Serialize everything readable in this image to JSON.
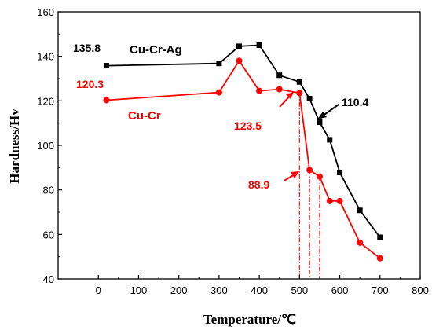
{
  "chart_data": {
    "type": "line",
    "xlabel": "Temperature/℃",
    "ylabel": "Hardness/Hv",
    "xlim": [
      -100,
      800
    ],
    "ylim": [
      40,
      160
    ],
    "xticks": [
      0,
      100,
      200,
      300,
      400,
      500,
      600,
      700,
      800
    ],
    "yticks": [
      40,
      60,
      80,
      100,
      120,
      140,
      160
    ],
    "grid": false,
    "series": [
      {
        "name": "Cu-Cr-Ag",
        "color": "#000000",
        "marker": "square",
        "points": [
          [
            20,
            135.8
          ],
          [
            300,
            136.8
          ],
          [
            350,
            144.5
          ],
          [
            400,
            145.0
          ],
          [
            450,
            131.5
          ],
          [
            500,
            128.5
          ],
          [
            525,
            121.0
          ],
          [
            550,
            110.4
          ],
          [
            575,
            102.5
          ],
          [
            600,
            87.8
          ],
          [
            650,
            70.8
          ],
          [
            700,
            58.7
          ]
        ]
      },
      {
        "name": "Cu-Cr",
        "color": "#ff0000",
        "marker": "circle",
        "points": [
          [
            20,
            120.3
          ],
          [
            300,
            123.8
          ],
          [
            350,
            138.0
          ],
          [
            400,
            124.5
          ],
          [
            450,
            125.2
          ],
          [
            500,
            123.5
          ],
          [
            525,
            88.9
          ],
          [
            550,
            86.0
          ],
          [
            575,
            75.0
          ],
          [
            600,
            75.0
          ],
          [
            650,
            56.3
          ],
          [
            700,
            49.3
          ]
        ]
      }
    ],
    "annotations": [
      {
        "text": "135.8",
        "color": "#000000"
      },
      {
        "text": "120.3",
        "color": "#ff0000"
      },
      {
        "text": "123.5",
        "color": "#ff0000"
      },
      {
        "text": "88.9",
        "color": "#ff0000"
      },
      {
        "text": "110.4",
        "color": "#000000"
      }
    ],
    "reference_lines": [
      {
        "x": 500,
        "color": "#ff0000",
        "style": "dash-dot"
      },
      {
        "x": 525,
        "color": "#ff0000",
        "style": "dash-dot"
      },
      {
        "x": 550,
        "color": "#ff0000",
        "style": "dash-dot"
      }
    ]
  }
}
